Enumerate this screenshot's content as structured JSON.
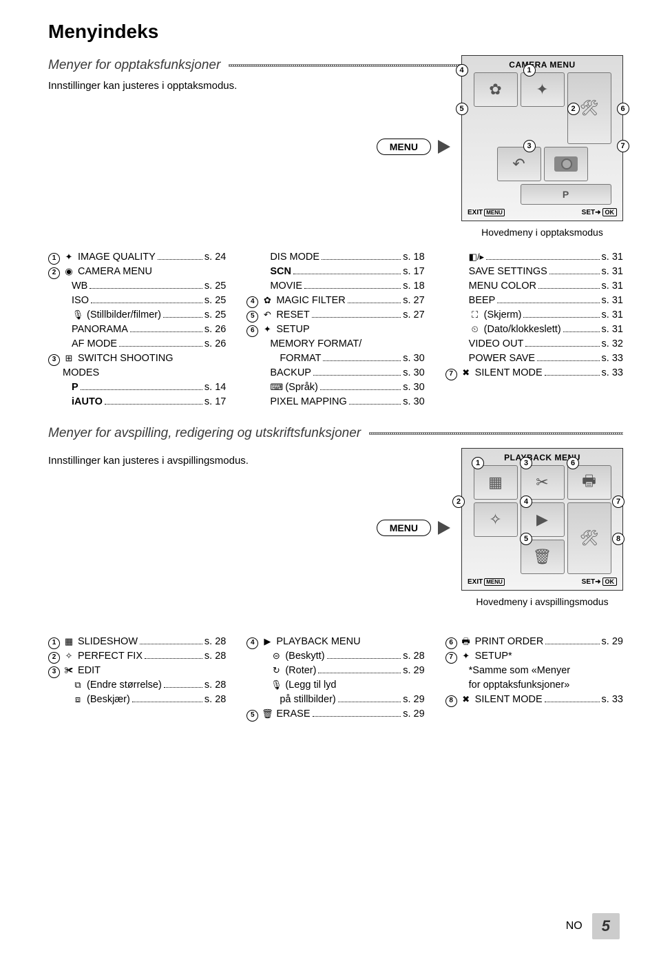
{
  "page": {
    "title": "Menyindeks",
    "footer_lang": "NO",
    "footer_page": "5"
  },
  "section1": {
    "heading": "Menyer for opptaksfunksjoner",
    "intro": "Innstillinger kan justeres i opptaksmodus.",
    "menu_button": "MENU",
    "screen_title": "CAMERA MENU",
    "exit_label": "EXIT",
    "set_label": "SET",
    "caption": "Hovedmeny i opptaksmodus",
    "col1": [
      {
        "num": "1",
        "icon": "✦",
        "label": "IMAGE QUALITY",
        "pg": "s. 24"
      },
      {
        "num": "2",
        "icon": "◉",
        "label": "CAMERA MENU",
        "pg": ""
      },
      {
        "indent": true,
        "label": "WB",
        "pg": "s. 25"
      },
      {
        "indent": true,
        "label": "ISO",
        "pg": "s. 25"
      },
      {
        "indent": true,
        "icon": "🎙",
        "label": "(Stillbilder/filmer)",
        "pg": "s. 25"
      },
      {
        "indent": true,
        "label": "PANORAMA",
        "pg": "s. 26"
      },
      {
        "indent": true,
        "label": "AF MODE",
        "pg": "s. 26"
      },
      {
        "num": "3",
        "icon": "⊞",
        "label": "SWITCH SHOOTING",
        "pg": ""
      },
      {
        "indent1": true,
        "label": "MODES",
        "pg": ""
      },
      {
        "indent": true,
        "bold": true,
        "label": "P",
        "pg": "s. 14"
      },
      {
        "indent": true,
        "bold": true,
        "label": "iAUTO",
        "pg": "s. 17"
      }
    ],
    "col2": [
      {
        "indent": true,
        "label": "DIS MODE",
        "pg": "s. 18"
      },
      {
        "indent": true,
        "bold": true,
        "label": "SCN",
        "pg": "s. 17"
      },
      {
        "indent": true,
        "label": "MOVIE",
        "pg": "s. 18"
      },
      {
        "num": "4",
        "icon": "✿",
        "label": "MAGIC FILTER",
        "pg": "s. 27"
      },
      {
        "num": "5",
        "icon": "↶",
        "label": "RESET",
        "pg": "s. 27"
      },
      {
        "num": "6",
        "icon": "✦",
        "label": "SETUP",
        "pg": ""
      },
      {
        "indent": true,
        "label": "MEMORY FORMAT/",
        "pg": ""
      },
      {
        "indent2": true,
        "label": "FORMAT",
        "pg": "s. 30"
      },
      {
        "indent": true,
        "label": "BACKUP",
        "pg": "s. 30"
      },
      {
        "indent": true,
        "icon": "⌨",
        "label": "(Språk)",
        "pg": "s. 30"
      },
      {
        "indent": true,
        "label": "PIXEL MAPPING",
        "pg": "s. 30"
      }
    ],
    "col3": [
      {
        "indent": true,
        "icon": "◧/▸",
        "label": "",
        "pg": "s. 31"
      },
      {
        "indent": true,
        "label": "SAVE SETTINGS",
        "pg": "s. 31"
      },
      {
        "indent": true,
        "label": "MENU COLOR",
        "pg": "s. 31"
      },
      {
        "indent": true,
        "label": "BEEP",
        "pg": "s. 31"
      },
      {
        "indent": true,
        "icon": "⛶",
        "label": "(Skjerm)",
        "pg": "s. 31"
      },
      {
        "indent": true,
        "icon": "⏲",
        "label": "(Dato/klokkeslett)",
        "pg": "s. 31"
      },
      {
        "indent": true,
        "label": "VIDEO OUT",
        "pg": "s. 32"
      },
      {
        "indent": true,
        "label": "POWER SAVE",
        "pg": "s. 33"
      },
      {
        "num": "7",
        "icon": "✖",
        "label": "SILENT MODE",
        "pg": "s. 33"
      }
    ]
  },
  "section2": {
    "heading": "Menyer for avspilling, redigering og utskriftsfunksjoner",
    "intro": "Innstillinger kan justeres i avspillingsmodus.",
    "menu_button": "MENU",
    "screen_title": "PLAYBACK MENU",
    "exit_label": "EXIT",
    "set_label": "SET",
    "caption": "Hovedmeny i avspillingsmodus",
    "col1": [
      {
        "num": "1",
        "icon": "▦",
        "label": "SLIDESHOW",
        "pg": "s. 28"
      },
      {
        "num": "2",
        "icon": "✧",
        "label": "PERFECT FIX",
        "pg": "s. 28"
      },
      {
        "num": "3",
        "icon": "✀",
        "label": "EDIT",
        "pg": ""
      },
      {
        "indent": true,
        "icon": "⧉",
        "label": "(Endre størrelse)",
        "pg": "s. 28"
      },
      {
        "indent": true,
        "icon": "⧈",
        "label": "(Beskjær)",
        "pg": "s. 28"
      }
    ],
    "col2": [
      {
        "num": "4",
        "icon": "▶",
        "label": "PLAYBACK MENU",
        "pg": ""
      },
      {
        "indent": true,
        "icon": "⊝",
        "label": "(Beskytt)",
        "pg": "s. 28"
      },
      {
        "indent": true,
        "icon": "↻",
        "label": "(Roter)",
        "pg": "s. 29"
      },
      {
        "indent": true,
        "icon": "🎙",
        "label": "(Legg til lyd",
        "pg": ""
      },
      {
        "indent2": true,
        "label": "på stillbilder)",
        "pg": "s. 29"
      },
      {
        "num": "5",
        "icon": "🗑",
        "label": "ERASE",
        "pg": "s. 29"
      }
    ],
    "col3": [
      {
        "num": "6",
        "icon": "🖶",
        "label": "PRINT ORDER",
        "pg": "s. 29"
      },
      {
        "num": "7",
        "icon": "✦",
        "label": "SETUP*",
        "pg": ""
      },
      {
        "hang": true,
        "label": "*Samme som «Menyer",
        "pg": ""
      },
      {
        "hang": true,
        "label": "for opptaksfunksjoner»",
        "pg": ""
      },
      {
        "num": "8",
        "icon": "✖",
        "label": "SILENT MODE",
        "pg": "s. 33"
      }
    ]
  },
  "colors": {
    "text": "#000000",
    "screen_bg_top": "#dcdcdc",
    "screen_bg_bottom": "#f4f4f4",
    "cell_border": "#777777",
    "arrow": "#4a4a4a"
  }
}
